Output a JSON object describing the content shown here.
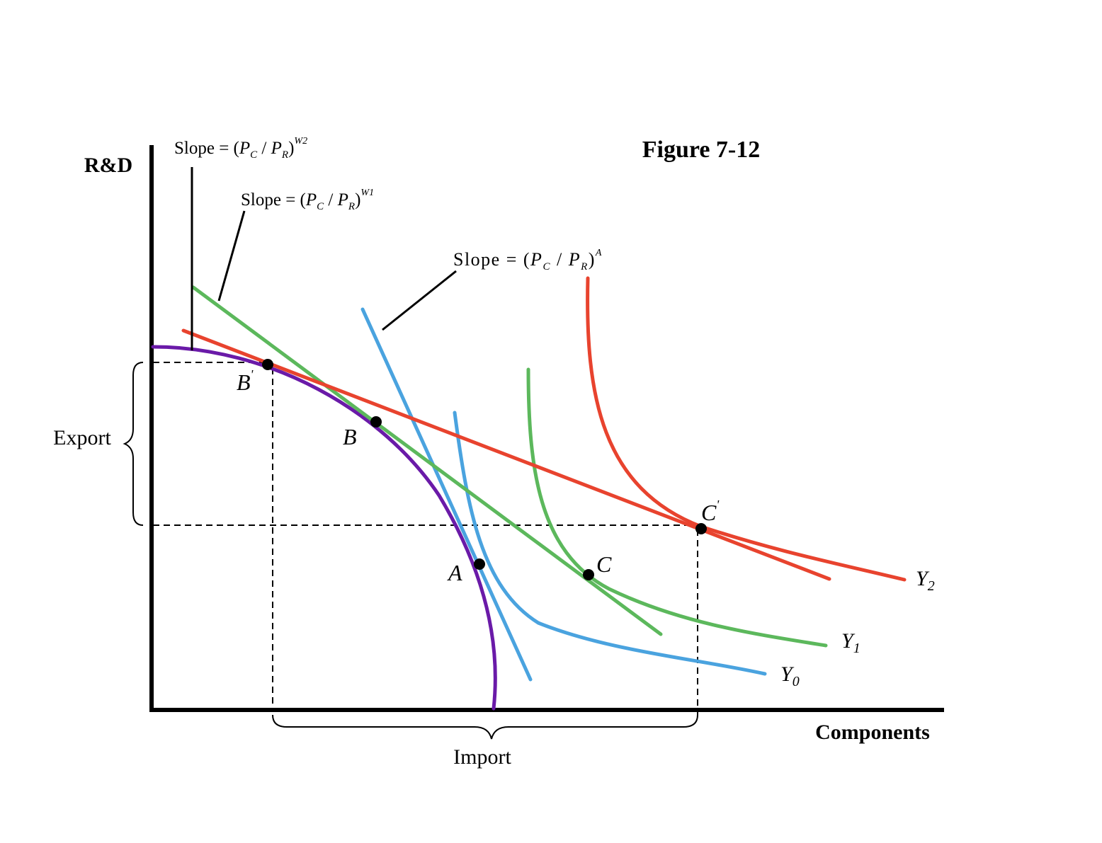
{
  "figure": {
    "title": "Figure 7-12",
    "y_axis_label": "R&D",
    "x_axis_label": "Components",
    "brace_export_label": "Export",
    "brace_import_label": "Import"
  },
  "slope_labels": {
    "w2": {
      "prefix": "Slope = (",
      "pc": "P",
      "pc_sub": "C",
      "sep": " / ",
      "pr": "P",
      "pr_sub": "R",
      "close": ")",
      "sup": "W2"
    },
    "w1": {
      "prefix": "Slope = (",
      "pc": "P",
      "pc_sub": "C",
      "sep": " / ",
      "pr": "P",
      "pr_sub": "R",
      "close": ")",
      "sup": "W1"
    },
    "a": {
      "prefix": "Slope = (",
      "pc": "P",
      "pc_sub": "C",
      "sep": " / ",
      "pr": "P",
      "pr_sub": "R",
      "close": ")",
      "sup": "A"
    }
  },
  "points": {
    "b_prime": {
      "letter": "B",
      "prime": "'"
    },
    "b": {
      "letter": "B"
    },
    "a": {
      "letter": "A"
    },
    "c": {
      "letter": "C"
    },
    "c_prime": {
      "letter": "C",
      "prime": "'"
    }
  },
  "curves": {
    "y0": {
      "letter": "Y",
      "sub": "0"
    },
    "y1": {
      "letter": "Y",
      "sub": "1"
    },
    "y2": {
      "letter": "Y",
      "sub": "2"
    }
  },
  "colors": {
    "ppf": "#6a1aa8",
    "y0": "#4aa3df",
    "y1": "#5cb85c",
    "y2": "#e8432e",
    "axis": "#000000"
  }
}
